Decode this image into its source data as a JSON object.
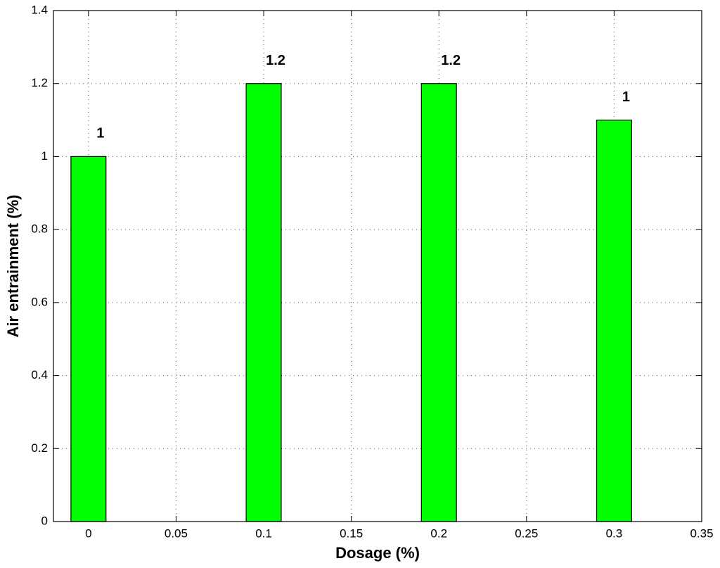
{
  "chart_data": {
    "type": "bar",
    "x": [
      0,
      0.1,
      0.2,
      0.3
    ],
    "values": [
      1,
      1.2,
      1.2,
      1.1
    ],
    "value_labels": [
      "1",
      "1.2",
      "1.2",
      "1"
    ],
    "color": "#00ff00",
    "xlabel": "Dosage (%)",
    "ylabel": "Air entrainment (%)",
    "xlim": [
      -0.02,
      0.35
    ],
    "ylim": [
      0,
      1.4
    ],
    "xticks": [
      0,
      0.05,
      0.1,
      0.15,
      0.2,
      0.25,
      0.3,
      0.35
    ],
    "yticks": [
      0,
      0.2,
      0.4,
      0.6,
      0.8,
      1,
      1.2,
      1.4
    ],
    "grid": true
  }
}
